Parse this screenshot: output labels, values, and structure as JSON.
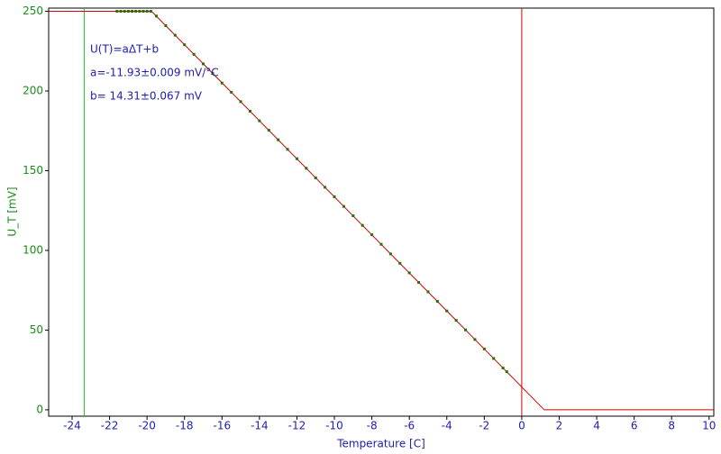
{
  "chart_data": {
    "type": "scatter",
    "x_label": "Temperature [C]",
    "y_label": "U_T [mV]",
    "annotations": [
      "U(T)=aΔT+b",
      "a=-11.93±0.009 mV/°C",
      "b= 14.31±0.067 mV"
    ],
    "xlim": [
      -25.25,
      10.25
    ],
    "ylim": [
      -4,
      252
    ],
    "xticks": [
      -24,
      -22,
      -20,
      -18,
      -16,
      -14,
      -12,
      -10,
      -8,
      -6,
      -4,
      -2,
      0,
      2,
      4,
      6,
      8,
      10
    ],
    "yticks": [
      0,
      50,
      100,
      150,
      200,
      250
    ],
    "vlines": [
      {
        "x": -23.35,
        "color": "#22cc22"
      },
      {
        "x": 0,
        "color": "#cc0000"
      }
    ],
    "series": [
      {
        "style": "line",
        "color": "#cc0000",
        "x": [
          -25.25,
          -19.76,
          1.2,
          10.25
        ],
        "values": [
          250,
          250,
          0,
          0
        ]
      },
      {
        "style": "points",
        "color": "#2e6b00",
        "x": [
          -21.6,
          -21.4,
          -21.2,
          -21,
          -20.8,
          -20.6,
          -20.4,
          -20.2,
          -20,
          -19.8,
          -19.5,
          -19,
          -18.5,
          -18,
          -17.5,
          -17,
          -16.5,
          -16,
          -15.5,
          -15,
          -14.5,
          -14,
          -13.5,
          -13,
          -12.5,
          -12,
          -11.5,
          -11,
          -10.5,
          -10,
          -9.5,
          -9,
          -8.5,
          -8,
          -7.5,
          -7,
          -6.5,
          -6,
          -5.5,
          -5,
          -4.5,
          -4,
          -3.5,
          -3,
          -2.5,
          -2,
          -1.5,
          -1,
          -0.8
        ],
        "values": [
          250,
          250,
          250,
          250,
          250,
          250,
          250,
          250,
          250,
          250,
          247,
          241,
          235,
          229,
          223,
          217,
          211,
          205,
          199.2,
          193.3,
          187.3,
          181.3,
          175.4,
          169.4,
          163.4,
          157.5,
          151.5,
          145.5,
          139.6,
          133.6,
          127.6,
          121.7,
          115.7,
          109.8,
          103.8,
          97.8,
          91.9,
          85.9,
          79.9,
          74,
          68,
          62,
          56.1,
          50.1,
          44.1,
          38.2,
          32.2,
          26.2,
          23.9
        ]
      }
    ]
  }
}
